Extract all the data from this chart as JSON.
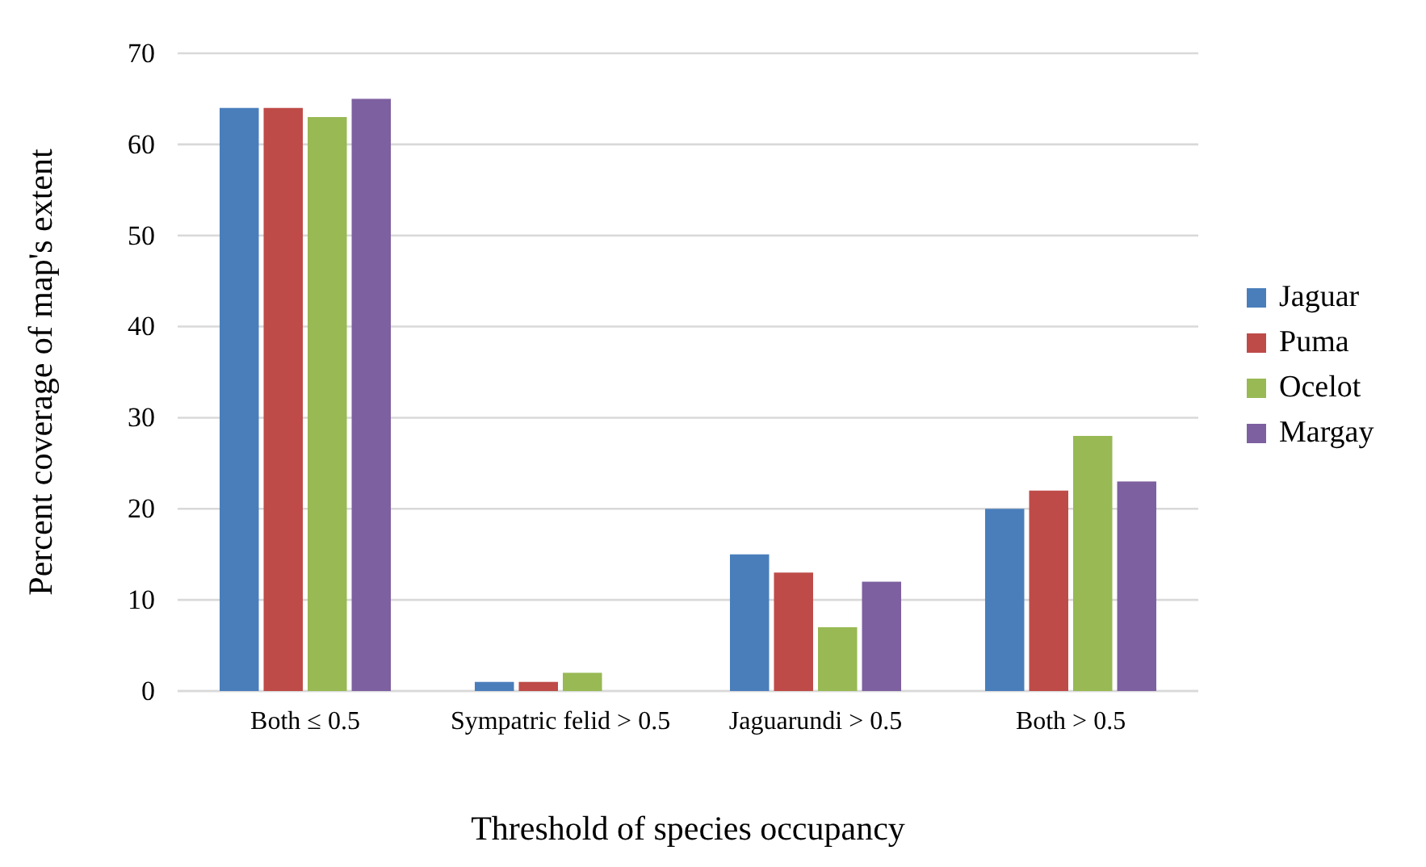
{
  "chart_data": {
    "type": "bar",
    "xlabel": "Threshold of species occupancy",
    "ylabel": "Percent coverage of map's extent",
    "categories": [
      "Both ≤ 0.5",
      "Sympatric felid > 0.5",
      "Jaguarundi > 0.5",
      "Both > 0.5"
    ],
    "series": [
      {
        "name": "Jaguar",
        "color": "#4a7ebb",
        "values": [
          64,
          1,
          15,
          20
        ]
      },
      {
        "name": "Puma",
        "color": "#be4b48",
        "values": [
          64,
          1,
          13,
          22
        ]
      },
      {
        "name": "Ocelot",
        "color": "#98b954",
        "values": [
          63,
          2,
          7,
          28
        ]
      },
      {
        "name": "Margay",
        "color": "#7d60a0",
        "values": [
          65,
          0,
          12,
          23
        ]
      }
    ],
    "ylim": [
      0,
      70
    ],
    "yticks": [
      0,
      10,
      20,
      30,
      40,
      50,
      60,
      70
    ],
    "grid": "y",
    "legend": "right"
  }
}
